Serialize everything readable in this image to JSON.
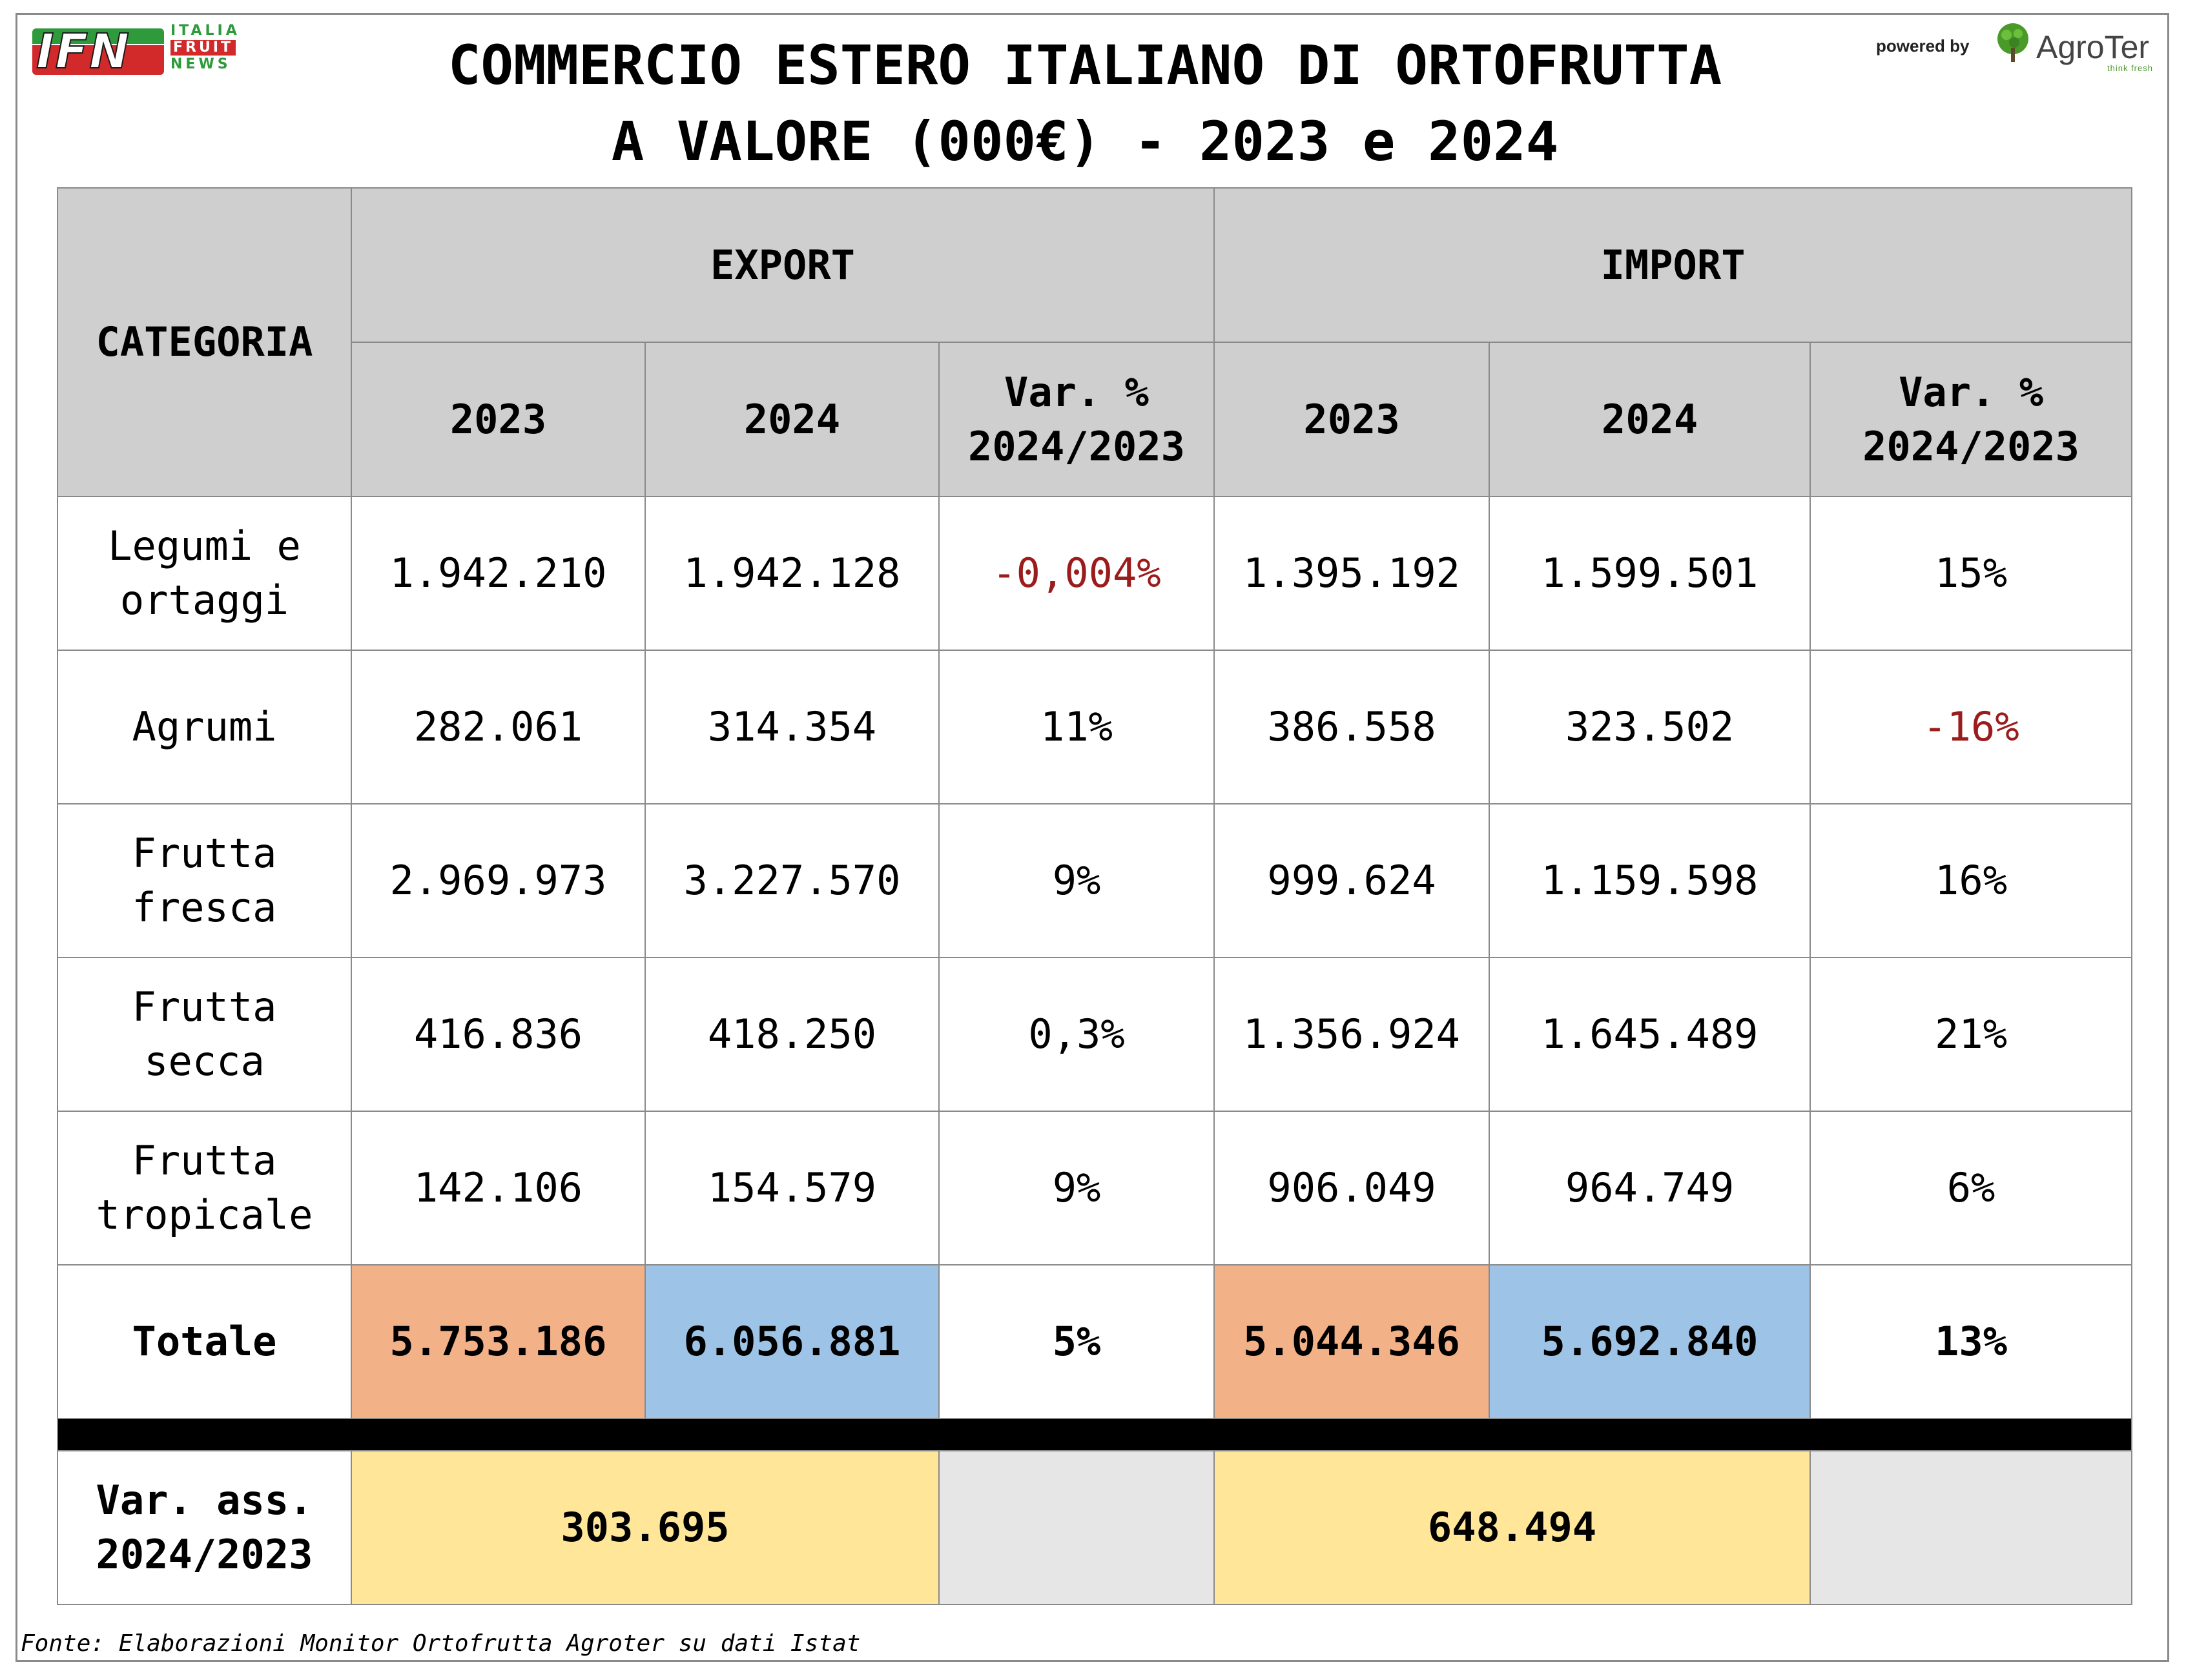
{
  "logo_ifn": {
    "mark": "IFN",
    "line1": "ITALIA",
    "line2": "FRUIT",
    "line3": "NEWS"
  },
  "title": {
    "line1": "COMMERCIO ESTERO ITALIANO DI ORTOFRUTTA",
    "line2": "A VALORE (000€) - 2023 e 2024"
  },
  "powered_by": "powered by",
  "agroter": {
    "name": "AgroTer",
    "tagline": "think fresh",
    "color": "#4a9a2a"
  },
  "table": {
    "category_header": "CATEGORIA",
    "export_header": "EXPORT",
    "import_header": "IMPORT",
    "sub_headers": [
      "2023",
      "2024",
      "Var. % 2024/2023",
      "2023",
      "2024",
      "Var. % 2024/2023"
    ],
    "rows": [
      {
        "category": "Legumi e ortaggi",
        "exp_2023": "1.942.210",
        "exp_2024": "1.942.128",
        "exp_var": "-0,004%",
        "imp_2023": "1.395.192",
        "imp_2024": "1.599.501",
        "imp_var": "15%"
      },
      {
        "category": "Agrumi",
        "exp_2023": "282.061",
        "exp_2024": "314.354",
        "exp_var": "11%",
        "imp_2023": "386.558",
        "imp_2024": "323.502",
        "imp_var": "-16%"
      },
      {
        "category": "Frutta fresca",
        "exp_2023": "2.969.973",
        "exp_2024": "3.227.570",
        "exp_var": "9%",
        "imp_2023": "999.624",
        "imp_2024": "1.159.598",
        "imp_var": "16%"
      },
      {
        "category": "Frutta secca",
        "exp_2023": "416.836",
        "exp_2024": "418.250",
        "exp_var": "0,3%",
        "imp_2023": "1.356.924",
        "imp_2024": "1.645.489",
        "imp_var": "21%"
      },
      {
        "category": "Frutta tropicale",
        "exp_2023": "142.106",
        "exp_2024": "154.579",
        "exp_var": "9%",
        "imp_2023": "906.049",
        "imp_2024": "964.749",
        "imp_var": "6%"
      }
    ],
    "total": {
      "category": "Totale",
      "exp_2023": "5.753.186",
      "exp_2024": "6.056.881",
      "exp_var": "5%",
      "imp_2023": "5.044.346",
      "imp_2024": "5.692.840",
      "imp_var": "13%"
    },
    "abs_var": {
      "label": "Var. ass. 2024/2023",
      "export": "303.695",
      "import": "648.494"
    }
  },
  "colors": {
    "header_bg": "#d0cfcf",
    "negative": "#9b1c1c",
    "col_2023": "#f3b187",
    "col_2024": "#9dc3e6",
    "abs_var": "#ffe699",
    "empty": "#e6e6e6"
  },
  "source": "Fonte: Elaborazioni Monitor Ortofrutta Agroter su dati Istat"
}
